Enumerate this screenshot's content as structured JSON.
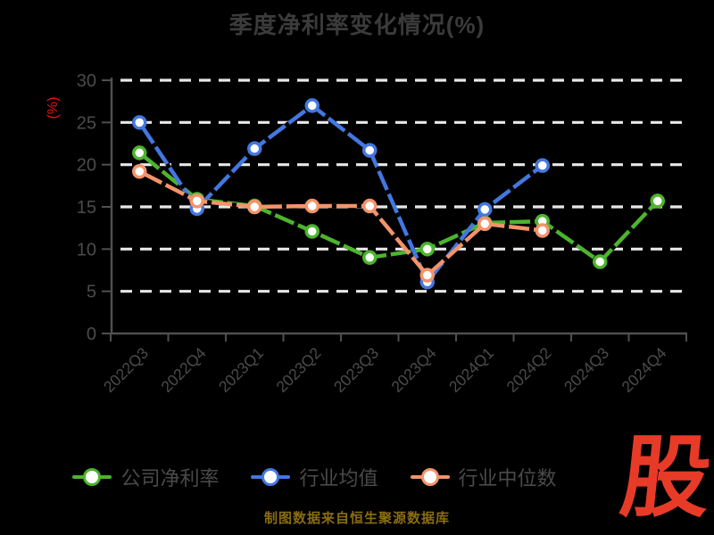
{
  "title": "季度净利率变化情况(%)",
  "chart_data": {
    "type": "line",
    "title": "季度净利率变化情况(%)",
    "categories": [
      "2022Q3",
      "2022Q4",
      "2023Q1",
      "2023Q2",
      "2023Q3",
      "2023Q4",
      "2024Q1",
      "2024Q2",
      "2024Q3",
      "2024Q4"
    ],
    "series": [
      {
        "name": "公司净利率",
        "color": "#4cb42e",
        "values": [
          21.4,
          15.9,
          15.1,
          12.1,
          9.0,
          10.0,
          13.1,
          13.3,
          8.5,
          15.7
        ]
      },
      {
        "name": "行业均值",
        "color": "#4377e0",
        "values": [
          25.0,
          14.8,
          21.9,
          27.0,
          21.7,
          6.1,
          14.7,
          19.9,
          null,
          null
        ]
      },
      {
        "name": "行业中位数",
        "color": "#f3936a",
        "values": [
          19.2,
          15.7,
          15.0,
          15.1,
          15.1,
          6.9,
          13.0,
          12.2,
          null,
          null
        ]
      }
    ],
    "xlabel": "",
    "ylabel": "(%)",
    "ylabel_color": "#ee1111",
    "ylim": [
      0,
      30
    ],
    "yticks": [
      0,
      5,
      10,
      15,
      20,
      25,
      30
    ],
    "grid": {
      "horizontal": true,
      "style": "dashed",
      "color": "#e8e8e8"
    },
    "legend_position": "bottom",
    "axis_text_color": "#4b4b4b",
    "axis_line_color": "#4f4f4f",
    "marker": "white-circle-colored-ring"
  },
  "footer": {
    "source_note": "制图数据来自恒生聚源数据库",
    "color": "#8a6c12"
  },
  "logo": {
    "text": "股",
    "color": "#e73b28"
  }
}
